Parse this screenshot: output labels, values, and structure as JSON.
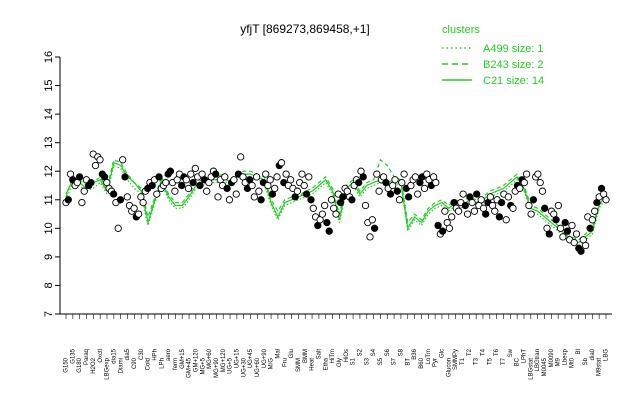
{
  "chart_data": {
    "type": "line",
    "title": "yfjT [869273,869458,+1]",
    "xlabel": "",
    "ylabel": "",
    "ylim": [
      7,
      16
    ],
    "yticks": [
      7,
      8,
      9,
      10,
      11,
      12,
      13,
      14,
      15,
      16
    ],
    "grid": false,
    "legend_placement": "top-right",
    "legend": {
      "title": "clusters",
      "entries": [
        {
          "label": "A499 size: 1",
          "style": "dotted"
        },
        {
          "label": "B243 size: 2",
          "style": "dashed"
        },
        {
          "label": "C21 size: 14",
          "style": "solid"
        }
      ]
    },
    "colors": {
      "cluster": "#22cc22",
      "points": "#000000",
      "point_fill": "#ffffff"
    },
    "tick_labels": [
      "G150",
      "G135",
      "G180",
      "Paraq",
      "H2O2",
      "Oxctl",
      "LBGexp",
      "dia15",
      "Diami",
      "dia5",
      "C90",
      "C30",
      "Cold",
      "HPh",
      "LPh",
      "aero",
      "ferm",
      "GM+15",
      "GM+45",
      "GM+120",
      "MG+5",
      "MG+60",
      "MG+90",
      "MG+120",
      "UG+5",
      "UG+15",
      "UG+30",
      "UG+45",
      "UG+60",
      "UG+90",
      "M/G",
      "Mal",
      "Fru",
      "Glu",
      "SMM",
      "BMM",
      "Heat",
      "Salt",
      "Etha",
      "HiTm",
      "Gly",
      "HiOs",
      "S1",
      "S2",
      "S3",
      "S4",
      "S5",
      "S6",
      "S7",
      "S8",
      "BT",
      "B36",
      "B60",
      "LoTm",
      "Pyr",
      "Glc",
      "Glucon",
      "SMMPy",
      "T1",
      "T2",
      "T3",
      "T4",
      "T5",
      "T6",
      "T7",
      "Sw",
      "BC",
      "LPhT",
      "LBGstat",
      "LBGtran",
      "M0045",
      "M0090",
      "M9",
      "Lbexp",
      "Mt0",
      "Bl",
      "Sb",
      "dia0",
      "M9stat",
      "LBG"
    ],
    "series": [
      {
        "values": [
          11.2,
          11.7,
          11.6,
          11.4,
          11.6,
          11.7,
          11.3,
          12.3,
          12.2,
          11.8,
          11.6,
          11.3,
          10.2,
          11.0,
          11.7,
          11.1,
          10.8,
          10.8,
          11.1,
          11.5,
          11.6,
          11.7,
          11.7,
          11.8,
          11.6,
          11.8,
          11.9,
          11.9,
          11.8,
          11.7,
          10.9,
          10.4,
          10.9,
          11.0,
          11.1,
          11.2,
          11.3,
          11.5,
          11.7,
          11.3,
          10.3,
          11.4,
          11.6,
          11.2,
          11.5,
          11.6,
          11.7,
          11.6,
          11.7,
          11.6,
          10.0,
          10.4,
          10.2,
          10.6,
          10.8,
          10.9,
          10.7,
          10.9,
          10.8,
          11.0,
          10.9,
          11.0,
          11.2,
          11.3,
          11.4,
          11.6,
          11.8,
          11.4,
          10.7,
          10.6,
          10.4,
          10.2,
          10.0,
          9.8,
          9.6,
          9.5,
          9.7,
          9.9,
          10.8,
          11.2
        ]
      },
      {
        "values": [
          11.1,
          11.8,
          11.7,
          11.5,
          11.6,
          11.8,
          11.4,
          12.4,
          12.3,
          11.9,
          11.6,
          11.4,
          10.4,
          11.1,
          11.8,
          11.2,
          10.9,
          10.9,
          11.2,
          11.6,
          11.7,
          11.8,
          11.8,
          11.9,
          11.7,
          11.9,
          12.0,
          12.0,
          11.9,
          11.8,
          11.0,
          10.6,
          11.0,
          11.1,
          11.1,
          11.3,
          11.4,
          11.6,
          11.8,
          11.4,
          10.5,
          11.5,
          11.7,
          11.3,
          11.6,
          11.7,
          12.4,
          12.2,
          11.8,
          11.7,
          10.2,
          10.5,
          10.3,
          10.7,
          10.9,
          11.0,
          10.8,
          11.0,
          10.9,
          11.1,
          11.0,
          11.1,
          11.3,
          11.4,
          11.5,
          11.7,
          11.9,
          11.5,
          10.8,
          10.7,
          10.5,
          10.3,
          10.1,
          9.9,
          9.7,
          9.6,
          9.8,
          10.0,
          10.9,
          11.3
        ]
      },
      {
        "values": [
          11.0,
          11.6,
          11.5,
          11.3,
          11.4,
          11.6,
          11.2,
          12.2,
          12.1,
          11.7,
          11.4,
          11.2,
          10.1,
          10.9,
          11.6,
          11.0,
          10.7,
          10.7,
          11.0,
          11.4,
          11.5,
          11.6,
          11.6,
          11.7,
          11.5,
          11.7,
          11.8,
          11.8,
          11.7,
          11.6,
          10.8,
          10.3,
          10.8,
          10.9,
          11.0,
          11.1,
          11.2,
          11.4,
          11.6,
          11.2,
          10.2,
          11.3,
          11.5,
          11.1,
          11.4,
          11.5,
          11.6,
          11.5,
          11.6,
          11.5,
          9.9,
          10.3,
          10.1,
          10.5,
          10.7,
          10.8,
          10.6,
          10.8,
          10.7,
          10.9,
          10.8,
          10.9,
          11.1,
          11.2,
          11.3,
          11.5,
          11.7,
          11.3,
          10.6,
          10.5,
          10.3,
          10.1,
          9.9,
          9.7,
          9.5,
          9.4,
          9.6,
          9.8,
          10.7,
          11.1
        ]
      }
    ],
    "points": [
      10.9,
      11.0,
      11.9,
      11.7,
      11.5,
      11.6,
      11.8,
      10.9,
      11.3,
      11.7,
      11.5,
      11.6,
      12.6,
      12.2,
      12.5,
      12.4,
      11.9,
      11.8,
      11.6,
      11.4,
      11.3,
      11.2,
      10.9,
      10.0,
      11.0,
      12.4,
      11.8,
      11.1,
      10.8,
      10.6,
      10.7,
      10.4,
      10.5,
      11.1,
      10.9,
      11.3,
      11.4,
      11.6,
      11.5,
      11.7,
      11.2,
      11.8,
      11.4,
      11.5,
      11.6,
      11.9,
      12.0,
      11.6,
      11.3,
      11.7,
      11.9,
      11.5,
      11.8,
      11.7,
      11.4,
      11.9,
      11.6,
      12.1,
      11.8,
      11.5,
      11.9,
      11.7,
      11.3,
      11.6,
      11.8,
      12.0,
      11.9,
      11.1,
      11.7,
      11.5,
      11.8,
      11.4,
      11.0,
      11.6,
      11.7,
      11.2,
      11.9,
      12.5,
      11.8,
      11.6,
      11.4,
      11.7,
      11.5,
      11.1,
      11.8,
      11.3,
      11.0,
      11.6,
      11.9,
      11.5,
      11.7,
      11.2,
      11.4,
      11.8,
      12.2,
      12.3,
      11.6,
      11.9,
      11.5,
      11.7,
      11.4,
      11.1,
      11.3,
      11.6,
      11.9,
      11.5,
      11.2,
      11.8,
      11.0,
      10.7,
      10.4,
      10.1,
      10.3,
      10.5,
      10.8,
      10.2,
      9.9,
      11.0,
      10.7,
      10.5,
      11.2,
      10.9,
      11.1,
      11.4,
      11.3,
      11.1,
      11.0,
      11.5,
      11.7,
      11.6,
      12.0,
      11.8,
      10.8,
      10.2,
      9.7,
      10.3,
      10.0,
      11.9,
      11.3,
      11.7,
      11.8,
      11.6,
      11.4,
      11.2,
      11.5,
      11.7,
      11.3,
      11.0,
      11.6,
      11.9,
      11.4,
      11.1,
      11.5,
      11.7,
      11.8,
      11.2,
      11.6,
      11.8,
      11.4,
      11.9,
      11.7,
      11.5,
      11.8,
      11.6,
      10.1,
      9.8,
      9.9,
      10.6,
      10.2,
      10.0,
      10.4,
      10.9,
      10.7,
      10.6,
      10.9,
      11.2,
      10.8,
      10.5,
      11.1,
      10.9,
      10.6,
      11.2,
      10.8,
      11.0,
      10.7,
      10.5,
      10.9,
      11.1,
      10.8,
      10.6,
      11.0,
      10.4,
      10.9,
      11.2,
      10.3,
      11.1,
      10.8,
      10.7,
      11.3,
      11.5,
      11.4,
      11.7,
      11.6,
      11.9,
      10.8,
      10.5,
      11.0,
      11.8,
      11.9,
      11.6,
      11.3,
      10.7,
      10.0,
      9.8,
      10.6,
      10.5,
      10.3,
      10.8,
      10.0,
      9.7,
      10.2,
      9.9,
      9.6,
      10.1,
      9.5,
      9.8,
      9.3,
      9.2,
      9.6,
      9.4,
      10.4,
      10.0,
      10.3,
      10.6,
      10.9,
      11.1,
      11.4,
      11.2,
      11.0
    ]
  }
}
